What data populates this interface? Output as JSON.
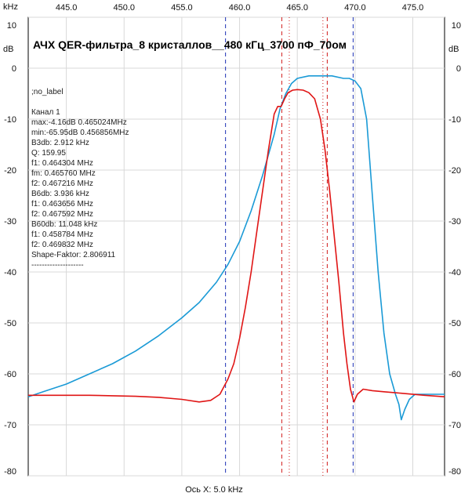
{
  "chart_data": {
    "type": "line",
    "title": "АЧХ QER-фильтра_8 кристаллов__480 кГц_3700 пФ_70ом",
    "top_axis_unit": "kHz",
    "left_axis_unit": "dB",
    "right_axis_unit": "dB",
    "xlabel": "Ось X: 5.0 kHz",
    "xlim": [
      441.7,
      477.75
    ],
    "ylim": [
      -80,
      10
    ],
    "x_ticks": [
      445.0,
      450.0,
      455.0,
      460.0,
      465.0,
      470.0,
      475.0
    ],
    "x_tick_labels": [
      "445.0",
      "450.0",
      "455.0",
      "460.0",
      "465.0",
      "470.0",
      "475.0"
    ],
    "y_ticks": [
      10,
      0,
      -10,
      -20,
      -30,
      -40,
      -50,
      -60,
      -70,
      -80
    ],
    "y_tick_labels": [
      "10",
      "0",
      "-10",
      "-20",
      "-30",
      "-40",
      "-50",
      "-60",
      "-70",
      "-80"
    ],
    "info_lines": [
      ";no_label",
      "Канал 1",
      "max:-4.16dB 0.465024MHz",
      "min:-65.95dB 0.456856MHz",
      "B3db: 2.912 kHz",
      "Q: 159.95",
      "f1: 0.464304 MHz",
      "fm: 0.465760 MHz",
      "f2: 0.467216 MHz",
      "B6db: 3.936 kHz",
      "f1: 0.463656 MHz",
      "f2: 0.467592 MHz",
      "B60db: 11.048 kHz",
      "f1: 0.458784 MHz",
      "f2: 0.469832 MHz",
      "Shape-Faktor: 2.806911",
      "--------------------"
    ],
    "markers": {
      "blue_dashed": [
        458.784,
        469.832
      ],
      "red_dashed": [
        463.656,
        467.592
      ],
      "red_dotted": [
        464.304,
        467.216
      ]
    },
    "series": [
      {
        "name": "blue",
        "color": "#1a9ad6",
        "x": [
          441.7,
          443,
          445,
          447,
          449,
          451,
          453,
          455,
          456.5,
          458,
          459,
          460,
          461,
          462,
          463,
          463.5,
          464,
          464.5,
          465,
          466,
          467,
          468,
          469,
          469.5,
          470,
          470.5,
          471,
          471.5,
          472,
          472.5,
          473,
          473.5,
          473.8,
          474,
          474.3,
          474.7,
          475.2,
          476,
          477,
          477.75
        ],
        "values": [
          -64.5,
          -63.5,
          -62,
          -60,
          -58,
          -55.5,
          -52.5,
          -49,
          -46,
          -42,
          -38.5,
          -34,
          -28,
          -21,
          -13,
          -8,
          -5,
          -3,
          -2,
          -1.5,
          -1.5,
          -1.5,
          -2,
          -2,
          -2.5,
          -4,
          -10,
          -25,
          -40,
          -52,
          -60,
          -64,
          -66,
          -69,
          -67,
          -65,
          -64,
          -64,
          -64,
          -64
        ]
      },
      {
        "name": "red",
        "color": "#e01515",
        "x": [
          441.7,
          443,
          445,
          447,
          449,
          451,
          453,
          455,
          456.5,
          457.5,
          458.3,
          459,
          459.5,
          460,
          460.5,
          461,
          461.5,
          462,
          462.5,
          463,
          463.3,
          463.6,
          463.9,
          464.2,
          464.6,
          465,
          465.5,
          466,
          466.5,
          467,
          467.4,
          467.8,
          468.2,
          468.6,
          469,
          469.3,
          469.6,
          469.9,
          470.2,
          470.7,
          471.5,
          472.5,
          474,
          476,
          477.75
        ],
        "values": [
          -64.2,
          -64.2,
          -64.2,
          -64.2,
          -64.3,
          -64.4,
          -64.6,
          -65,
          -65.5,
          -65.2,
          -64,
          -61,
          -58,
          -53,
          -47,
          -40,
          -32,
          -24,
          -16,
          -9,
          -7.5,
          -7.5,
          -6,
          -4.8,
          -4.3,
          -4.2,
          -4.3,
          -4.8,
          -6,
          -10,
          -16,
          -24,
          -33,
          -42,
          -52,
          -58,
          -63,
          -65.5,
          -64,
          -63,
          -63.3,
          -63.5,
          -63.8,
          -64.2,
          -64.5
        ]
      }
    ]
  }
}
